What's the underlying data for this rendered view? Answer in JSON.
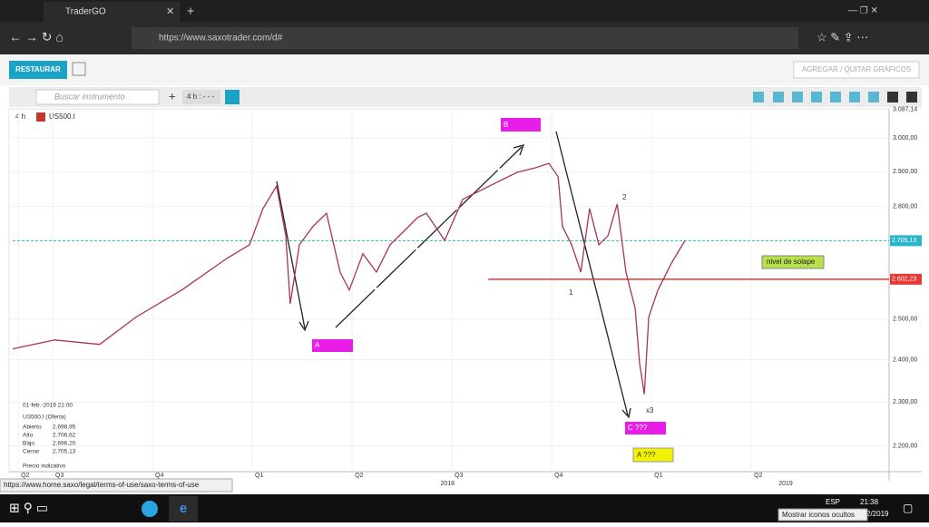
{
  "browser": {
    "tab_title": "TraderGO",
    "url": "https://www.saxotrader.com/d#",
    "status_url": "https://www.home.saxo/legal/terms-of-use/saxo-terms-of-use"
  },
  "app": {
    "restore_button": "RESTAURAR",
    "add_remove_button": "AGREGAR / QUITAR GRÁFICOS",
    "search_placeholder": "Buscar instrumento",
    "timeframe_selector": "4 h : - - -"
  },
  "chart_data": {
    "type": "line",
    "timeframe": "4 h",
    "instrument": "US500.I",
    "color": "#a8325a",
    "log_scale": true,
    "x": [
      2017.4,
      2017.505,
      2017.618,
      2017.709,
      2017.823,
      2017.936,
      2017.993,
      2018.027,
      2018.061,
      2018.084,
      2018.095,
      2018.118,
      2018.152,
      2018.186,
      2018.22,
      2018.243,
      2018.277,
      2018.311,
      2018.345,
      2018.38,
      2018.414,
      2018.436,
      2018.482,
      2018.527,
      2018.573,
      2018.618,
      2018.664,
      2018.709,
      2018.743,
      2018.766,
      2018.777,
      2018.8,
      2018.823,
      2018.845,
      2018.868,
      2018.891,
      2018.914,
      2018.936,
      2018.959,
      2018.97,
      2018.982,
      2018.993,
      2019.016,
      2019.05,
      2019.084
    ],
    "values": [
      2426,
      2448,
      2437,
      2505,
      2574,
      2657,
      2694,
      2794,
      2858,
      2719,
      2539,
      2694,
      2744,
      2781,
      2621,
      2574,
      2670,
      2621,
      2694,
      2731,
      2769,
      2781,
      2706,
      2820,
      2846,
      2872,
      2898,
      2911,
      2924,
      2885,
      2744,
      2694,
      2621,
      2794,
      2694,
      2719,
      2807,
      2621,
      2527,
      2393,
      2318,
      2505,
      2574,
      2645,
      2706
    ],
    "xlim": [
      2017.4,
      2019.595
    ],
    "ylim": [
      2144,
      3089
    ],
    "yticks": [
      {
        "value": 3087.14,
        "label": "3.087,14"
      },
      {
        "value": 3000,
        "label": "3.000,00"
      },
      {
        "value": 2900,
        "label": "2.900,00"
      },
      {
        "value": 2800,
        "label": "2.800,00"
      },
      {
        "value": 2500,
        "label": "2.500,00"
      },
      {
        "value": 2400,
        "label": "2.400,00"
      },
      {
        "value": 2300,
        "label": "2.300,00"
      },
      {
        "value": 2200,
        "label": "2.200,00"
      }
    ],
    "xticks": [
      {
        "value": 2017.414,
        "label": "Q2"
      },
      {
        "value": 2017.5,
        "label": "Q3"
      },
      {
        "value": 2017.75,
        "label": "Q4"
      },
      {
        "value": 2018,
        "label": "Q1"
      },
      {
        "value": 2018.25,
        "label": "Q2"
      },
      {
        "value": 2018.5,
        "label": "Q3"
      },
      {
        "value": 2018.75,
        "label": "Q4"
      },
      {
        "value": 2019,
        "label": "Q1"
      },
      {
        "value": 2019.25,
        "label": "Q2"
      }
    ],
    "year_labels": [
      {
        "value": 2018.489,
        "label": "2018"
      },
      {
        "value": 2019.336,
        "label": "2019"
      }
    ],
    "reference_lines": [
      {
        "value": 2705.13,
        "label": "2.705,13",
        "color": "#29b6c8",
        "style": "dashed",
        "from": 2017.4
      },
      {
        "value": 2602.23,
        "label": "2.602,23",
        "color": "#e53935",
        "style": "solid",
        "from": 2018.591
      }
    ],
    "annotations": [
      "B",
      "A",
      "C ???",
      "A ???",
      "1",
      "2",
      "x3",
      "nivel de solape"
    ],
    "info": {
      "datetime": "01-feb.-2019 21:00",
      "title": "US500.I (Oferta)",
      "rows": [
        [
          "Abierto",
          "2.698,95"
        ],
        [
          "Alto",
          "2.706,62"
        ],
        [
          "Bajo",
          "2.696,20"
        ],
        [
          "Cerrar",
          "2.705,13"
        ]
      ],
      "footer": "Precio indicativo"
    }
  },
  "taskbar": {
    "language": "ESP",
    "time": "21:38",
    "date": "2/2019",
    "tooltip": "Mostrar iconos ocultos"
  }
}
